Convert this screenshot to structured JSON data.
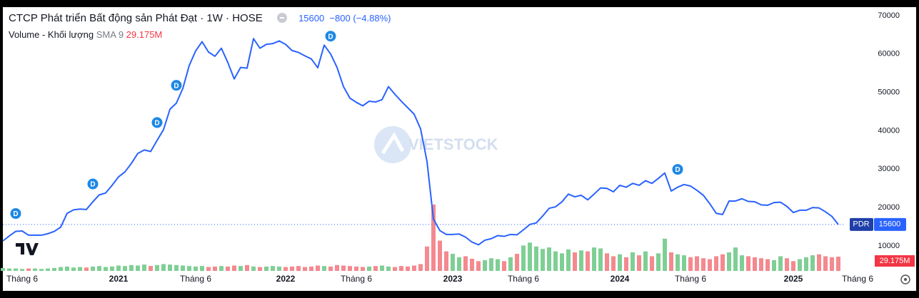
{
  "chart_data": {
    "type": "line",
    "title": "CTCP Phát triển Bất động sản Phát Đạt · 1W · HOSE",
    "change": {
      "value": -800,
      "label": "−800"
    },
    "change_pct": {
      "value": -4.88,
      "label": "(−4.88%)"
    },
    "volume_indicator": "SMA 9",
    "watermark": "VIETSTOCK",
    "marker_label": "D",
    "marker_indices": [
      2,
      14,
      24,
      27,
      51,
      105
    ],
    "categories": [
      null,
      null,
      null,
      "Tháng 6",
      null,
      null,
      null,
      null,
      null,
      null,
      null,
      null,
      null,
      null,
      null,
      null,
      null,
      null,
      "2021",
      null,
      null,
      null,
      null,
      null,
      null,
      null,
      null,
      null,
      null,
      null,
      "Tháng 6",
      null,
      null,
      null,
      null,
      null,
      null,
      null,
      null,
      null,
      null,
      null,
      null,
      null,
      "2022",
      null,
      null,
      null,
      null,
      null,
      null,
      null,
      null,
      null,
      null,
      "Tháng 6",
      null,
      null,
      null,
      null,
      null,
      null,
      null,
      null,
      null,
      null,
      null,
      null,
      null,
      null,
      "2023",
      null,
      null,
      null,
      null,
      null,
      null,
      null,
      null,
      null,
      null,
      "Tháng 6",
      null,
      null,
      null,
      null,
      null,
      null,
      null,
      null,
      null,
      null,
      null,
      null,
      null,
      null,
      "2024",
      null,
      null,
      null,
      null,
      null,
      null,
      null,
      null,
      null,
      null,
      "Tháng 6",
      null,
      null,
      null,
      null,
      null,
      null,
      null,
      null,
      null,
      null,
      null,
      null,
      null,
      null,
      null,
      "2025",
      null,
      null,
      null,
      null,
      null,
      null,
      null,
      null,
      null,
      "Tháng 6"
    ],
    "series": [
      {
        "name": "PDR",
        "color": "#2962ff",
        "values": [
          11300,
          12600,
          13800,
          13900,
          12800,
          12800,
          12800,
          13200,
          13800,
          14900,
          18500,
          19400,
          19600,
          19500,
          21500,
          23300,
          23800,
          25800,
          28000,
          29300,
          31500,
          34100,
          35000,
          34600,
          37500,
          40300,
          45600,
          47200,
          51000,
          57000,
          60800,
          63200,
          60500,
          59400,
          61500,
          57800,
          53500,
          56500,
          56300,
          64000,
          61500,
          62500,
          62700,
          63400,
          62500,
          60900,
          60400,
          59500,
          58700,
          56400,
          62300,
          60000,
          56500,
          51500,
          48500,
          47400,
          46500,
          47700,
          47500,
          48100,
          51500,
          49500,
          47700,
          46000,
          44300,
          40500,
          32000,
          17000,
          14000,
          13000,
          13000,
          13100,
          12300,
          11000,
          10300,
          11500,
          11900,
          12700,
          12500,
          13000,
          12900,
          14200,
          15600,
          16000,
          17800,
          19800,
          20200,
          21500,
          23500,
          22800,
          23200,
          22000,
          23500,
          25100,
          25000,
          24100,
          25800,
          25300,
          26300,
          25800,
          27000,
          26300,
          27600,
          29000,
          24300,
          25300,
          26000,
          25600,
          24500,
          23200,
          21000,
          18500,
          18200,
          21700,
          21700,
          22300,
          21600,
          21500,
          20700,
          20600,
          21300,
          21400,
          20300,
          18700,
          19300,
          19300,
          20000,
          19900,
          18900,
          17700,
          15600,
          null,
          null,
          null
        ]
      },
      {
        "name": "Volume - Khối lượng",
        "axis": "y2",
        "up_color": "#7fcf95",
        "down_color": "#f4898f",
        "last_value_label": "29.175M",
        "values": [
          6,
          5,
          5,
          4,
          5,
          5,
          4,
          5,
          6,
          8,
          9,
          7,
          8,
          7,
          9,
          10,
          8,
          9,
          11,
          10,
          12,
          11,
          13,
          10,
          12,
          14,
          13,
          12,
          11,
          10,
          9,
          10,
          8,
          9,
          10,
          9,
          11,
          10,
          12,
          9,
          8,
          9,
          10,
          9,
          8,
          9,
          10,
          8,
          9,
          11,
          10,
          9,
          12,
          11,
          10,
          9,
          8,
          9,
          10,
          11,
          9,
          8,
          10,
          9,
          11,
          14,
          50,
          136,
          62,
          40,
          35,
          28,
          30,
          25,
          20,
          22,
          26,
          24,
          20,
          28,
          35,
          52,
          58,
          50,
          45,
          48,
          40,
          36,
          44,
          38,
          42,
          40,
          48,
          46,
          36,
          30,
          34,
          28,
          38,
          32,
          40,
          30,
          36,
          66,
          38,
          34,
          32,
          28,
          30,
          26,
          24,
          30,
          34,
          38,
          48,
          32,
          30,
          28,
          26,
          24,
          22,
          30,
          26,
          20,
          24,
          28,
          32,
          34,
          30,
          28,
          29.175,
          null,
          null,
          null
        ]
      }
    ],
    "ylim": [
      3500,
      72200
    ],
    "yticks": [
      10000,
      20000,
      30000,
      40000,
      50000,
      60000,
      70000
    ],
    "y2lim": [
      0,
      540
    ],
    "grid": false
  }
}
